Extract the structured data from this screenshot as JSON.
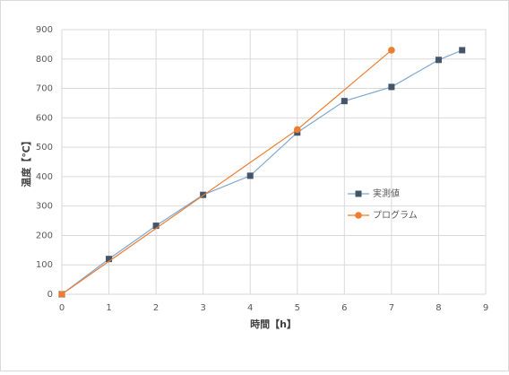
{
  "chart_data": {
    "type": "line",
    "xlabel": "時間【h】",
    "ylabel": "温度【℃】",
    "xlim": [
      0,
      9
    ],
    "xticks": [
      0,
      1,
      2,
      3,
      4,
      5,
      6,
      7,
      8,
      9
    ],
    "ylim": [
      0,
      900
    ],
    "yticks": [
      0,
      100,
      200,
      300,
      400,
      500,
      600,
      700,
      800,
      900
    ],
    "grid": true,
    "legend": "right",
    "series": [
      {
        "name": "実測値",
        "color": "#44546a",
        "line_color": "#7fa7d4",
        "marker": "square",
        "x": [
          0,
          1,
          2,
          3,
          4,
          5,
          6,
          7,
          8,
          8.5
        ],
        "values": [
          0,
          120,
          233,
          338,
          403,
          550,
          657,
          705,
          797,
          830
        ]
      },
      {
        "name": "プログラム",
        "color": "#ed7d31",
        "line_color": "#ed7d31",
        "marker": "circle",
        "x": [
          0,
          5,
          7
        ],
        "values": [
          0,
          560,
          830
        ]
      }
    ]
  }
}
